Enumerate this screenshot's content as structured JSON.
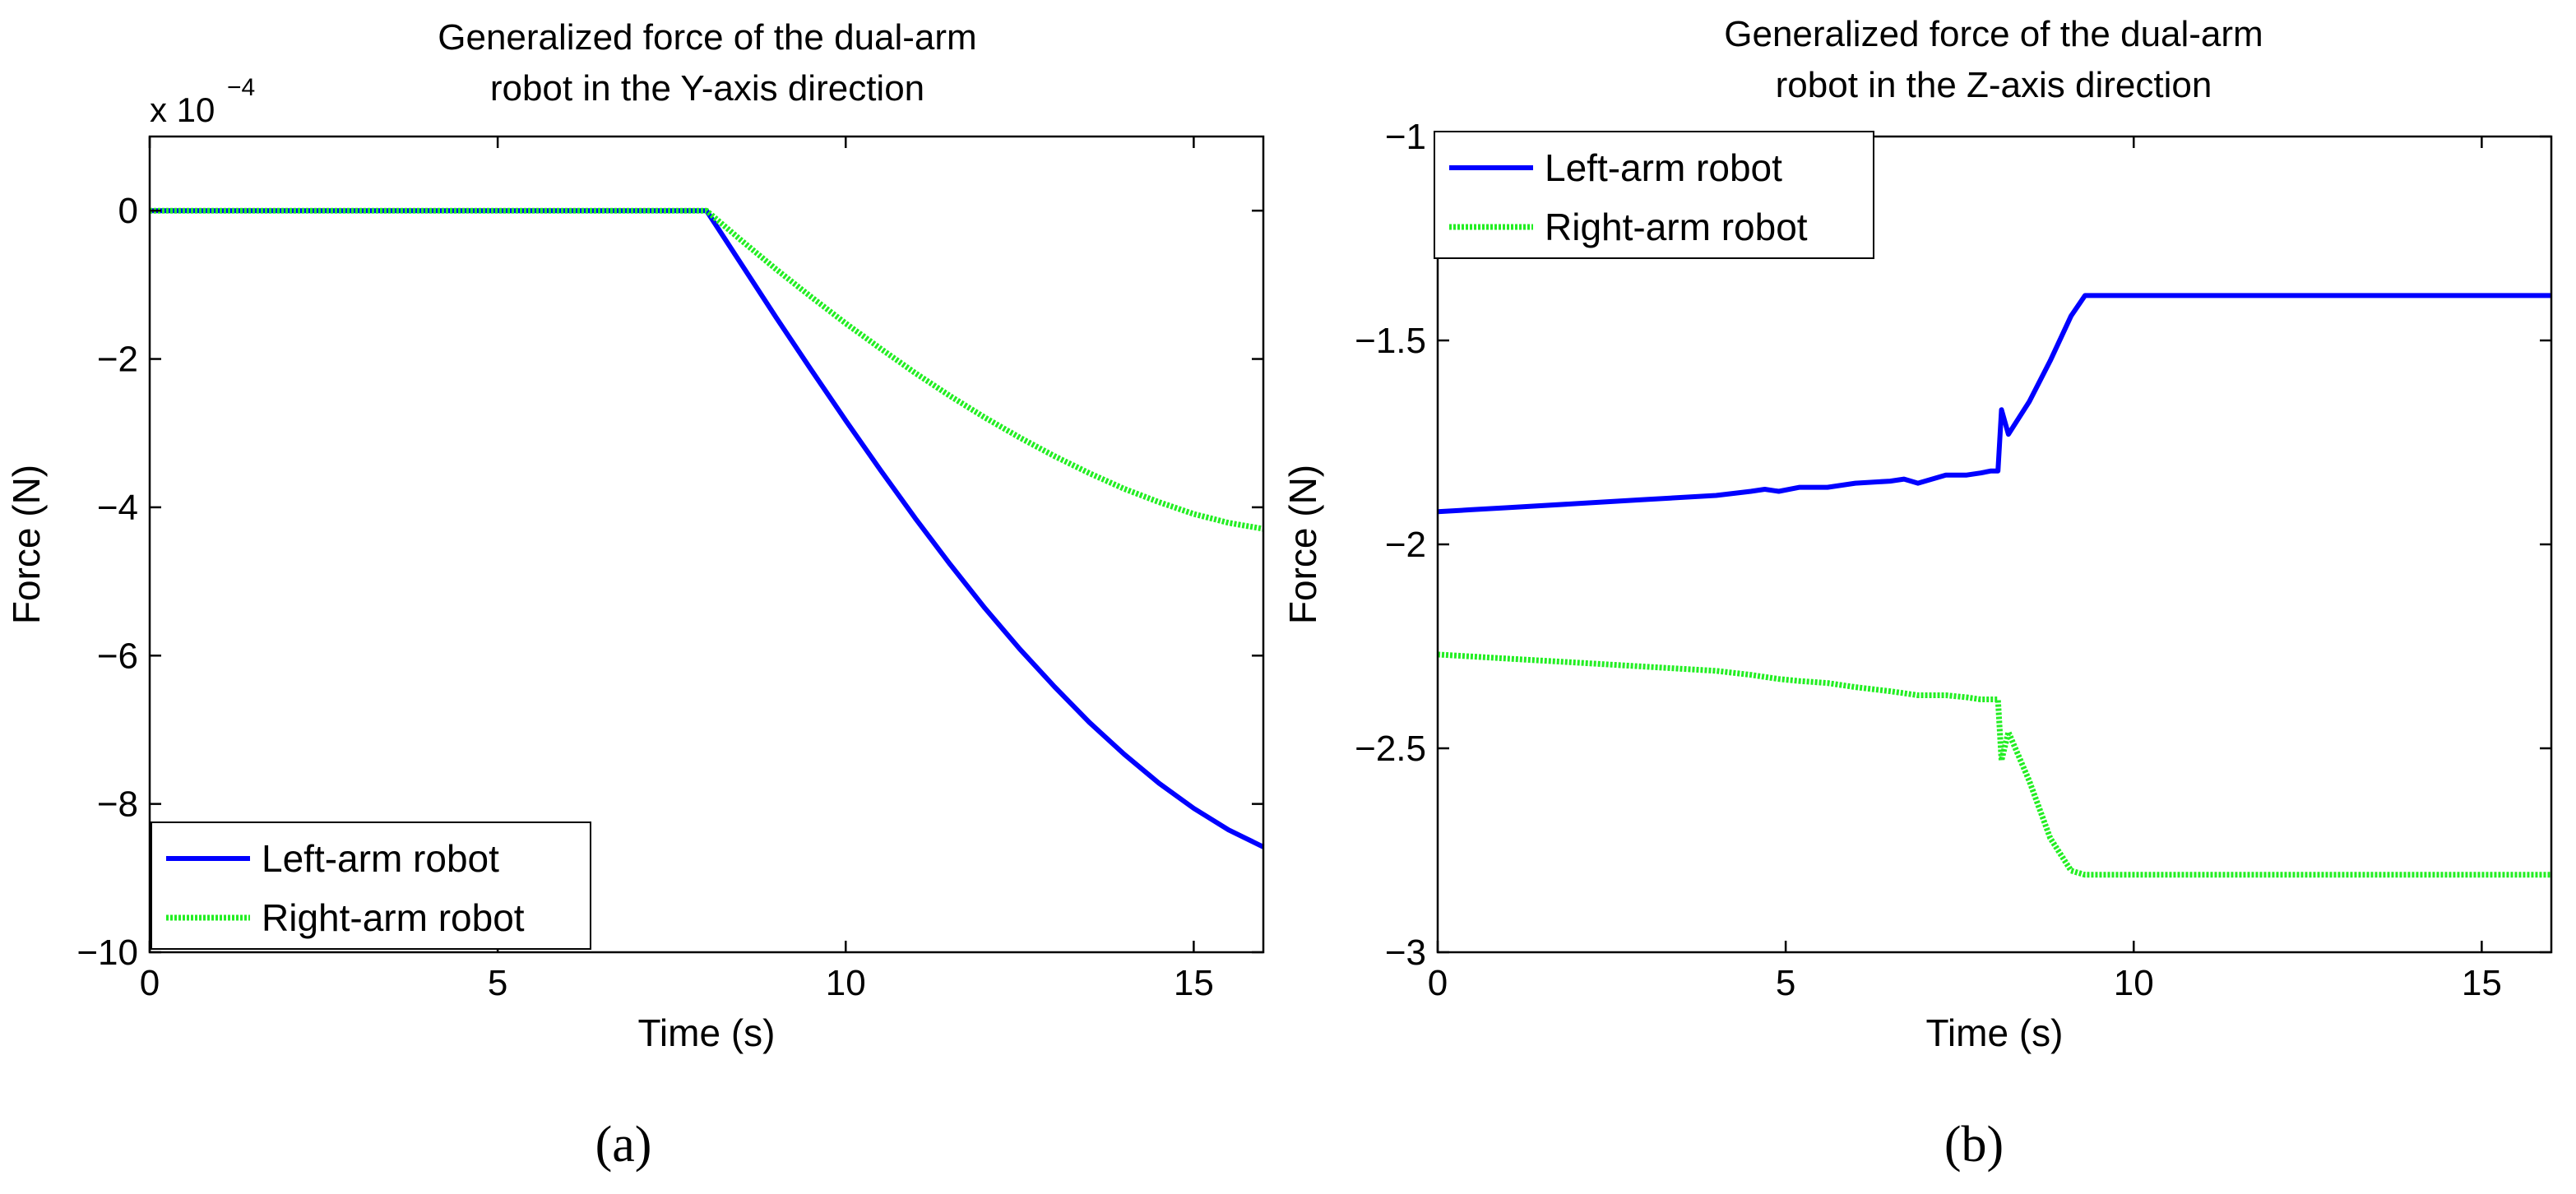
{
  "chart_data": [
    {
      "type": "line",
      "title": "Generalized force of the dual-arm robot in the Y-axis direction",
      "title_lines": [
        "Generalized force of the dual-arm",
        "robot in the Y-axis direction"
      ],
      "xlabel": "Time (s)",
      "ylabel": "Force (N)",
      "multiplier_base": "x 10",
      "multiplier_exp": "−4",
      "xlim": [
        0,
        16
      ],
      "ylim": [
        -10,
        1
      ],
      "xticks": [
        0,
        5,
        10,
        15
      ],
      "xtick_labels": [
        "0",
        "5",
        "10",
        "15"
      ],
      "yticks": [
        0,
        -2,
        -4,
        -6,
        -8,
        -10
      ],
      "ytick_labels": [
        "0",
        "−2",
        "−4",
        "−6",
        "−8",
        "−10"
      ],
      "grid": false,
      "legend_position": "bottom-left",
      "series": [
        {
          "name": "Left-arm robot",
          "color": "#0000ff",
          "style": "solid",
          "x": [
            0,
            2,
            4,
            6,
            8,
            8.5,
            9,
            9.5,
            10,
            10.5,
            11,
            11.5,
            12,
            12.5,
            13,
            13.5,
            14,
            14.5,
            15,
            15.5,
            16
          ],
          "y": [
            0,
            0,
            0,
            0,
            0,
            -0.72,
            -1.44,
            -2.14,
            -2.83,
            -3.5,
            -4.15,
            -4.77,
            -5.36,
            -5.91,
            -6.42,
            -6.9,
            -7.33,
            -7.72,
            -8.06,
            -8.35,
            -8.58
          ]
        },
        {
          "name": "Right-arm robot",
          "color": "#22ee22",
          "style": "dotted",
          "x": [
            0,
            2,
            4,
            6,
            8,
            8.5,
            9,
            9.5,
            10,
            10.5,
            11,
            11.5,
            12,
            12.5,
            13,
            13.5,
            14,
            14.5,
            15,
            15.5,
            16
          ],
          "y": [
            0,
            0,
            0,
            0,
            0,
            -0.4,
            -0.79,
            -1.16,
            -1.52,
            -1.86,
            -2.19,
            -2.5,
            -2.79,
            -3.06,
            -3.31,
            -3.54,
            -3.75,
            -3.93,
            -4.09,
            -4.21,
            -4.29
          ]
        }
      ],
      "panel_label": "(a)"
    },
    {
      "type": "line",
      "title": "Generalized force of the dual-arm robot in the Z-axis direction",
      "title_lines": [
        "Generalized force of the dual-arm",
        "robot in the Z-axis direction"
      ],
      "xlabel": "Time (s)",
      "ylabel": "Force (N)",
      "xlim": [
        0,
        16
      ],
      "ylim": [
        -3,
        -1
      ],
      "xticks": [
        0,
        5,
        10,
        15
      ],
      "xtick_labels": [
        "0",
        "5",
        "10",
        "15"
      ],
      "yticks": [
        -1,
        -1.5,
        -2,
        -2.5,
        -3
      ],
      "ytick_labels": [
        "−1",
        "−1.5",
        "−2",
        "−2.5",
        "−3"
      ],
      "grid": false,
      "legend_position": "top-left",
      "series": [
        {
          "name": "Left-arm robot",
          "color": "#0000ff",
          "style": "solid",
          "x": [
            0,
            0.5,
            1,
            2,
            3,
            4,
            4.5,
            4.7,
            4.9,
            5.2,
            5.6,
            6,
            6.5,
            6.7,
            6.9,
            7.3,
            7.6,
            7.8,
            7.95,
            8.05,
            8.1,
            8.2,
            8.5,
            8.8,
            9.1,
            9.3,
            10,
            12,
            14,
            16
          ],
          "y": [
            -1.92,
            -1.915,
            -1.91,
            -1.9,
            -1.89,
            -1.88,
            -1.87,
            -1.865,
            -1.87,
            -1.86,
            -1.86,
            -1.85,
            -1.845,
            -1.84,
            -1.85,
            -1.83,
            -1.83,
            -1.825,
            -1.82,
            -1.82,
            -1.67,
            -1.73,
            -1.65,
            -1.55,
            -1.44,
            -1.39,
            -1.39,
            -1.39,
            -1.39,
            -1.39
          ]
        },
        {
          "name": "Right-arm robot",
          "color": "#22ee22",
          "style": "dotted",
          "x": [
            0,
            0.5,
            1,
            2,
            3,
            4,
            4.5,
            4.7,
            4.9,
            5.2,
            5.6,
            6,
            6.5,
            6.7,
            6.9,
            7.3,
            7.6,
            7.8,
            7.95,
            8.05,
            8.1,
            8.2,
            8.5,
            8.8,
            9.1,
            9.3,
            10,
            12,
            14,
            16
          ],
          "y": [
            -2.27,
            -2.275,
            -2.28,
            -2.29,
            -2.3,
            -2.31,
            -2.32,
            -2.325,
            -2.33,
            -2.335,
            -2.34,
            -2.35,
            -2.36,
            -2.365,
            -2.37,
            -2.37,
            -2.375,
            -2.38,
            -2.38,
            -2.38,
            -2.53,
            -2.46,
            -2.58,
            -2.72,
            -2.8,
            -2.81,
            -2.81,
            -2.81,
            -2.81,
            -2.81
          ]
        }
      ],
      "panel_label": "(b)"
    }
  ]
}
